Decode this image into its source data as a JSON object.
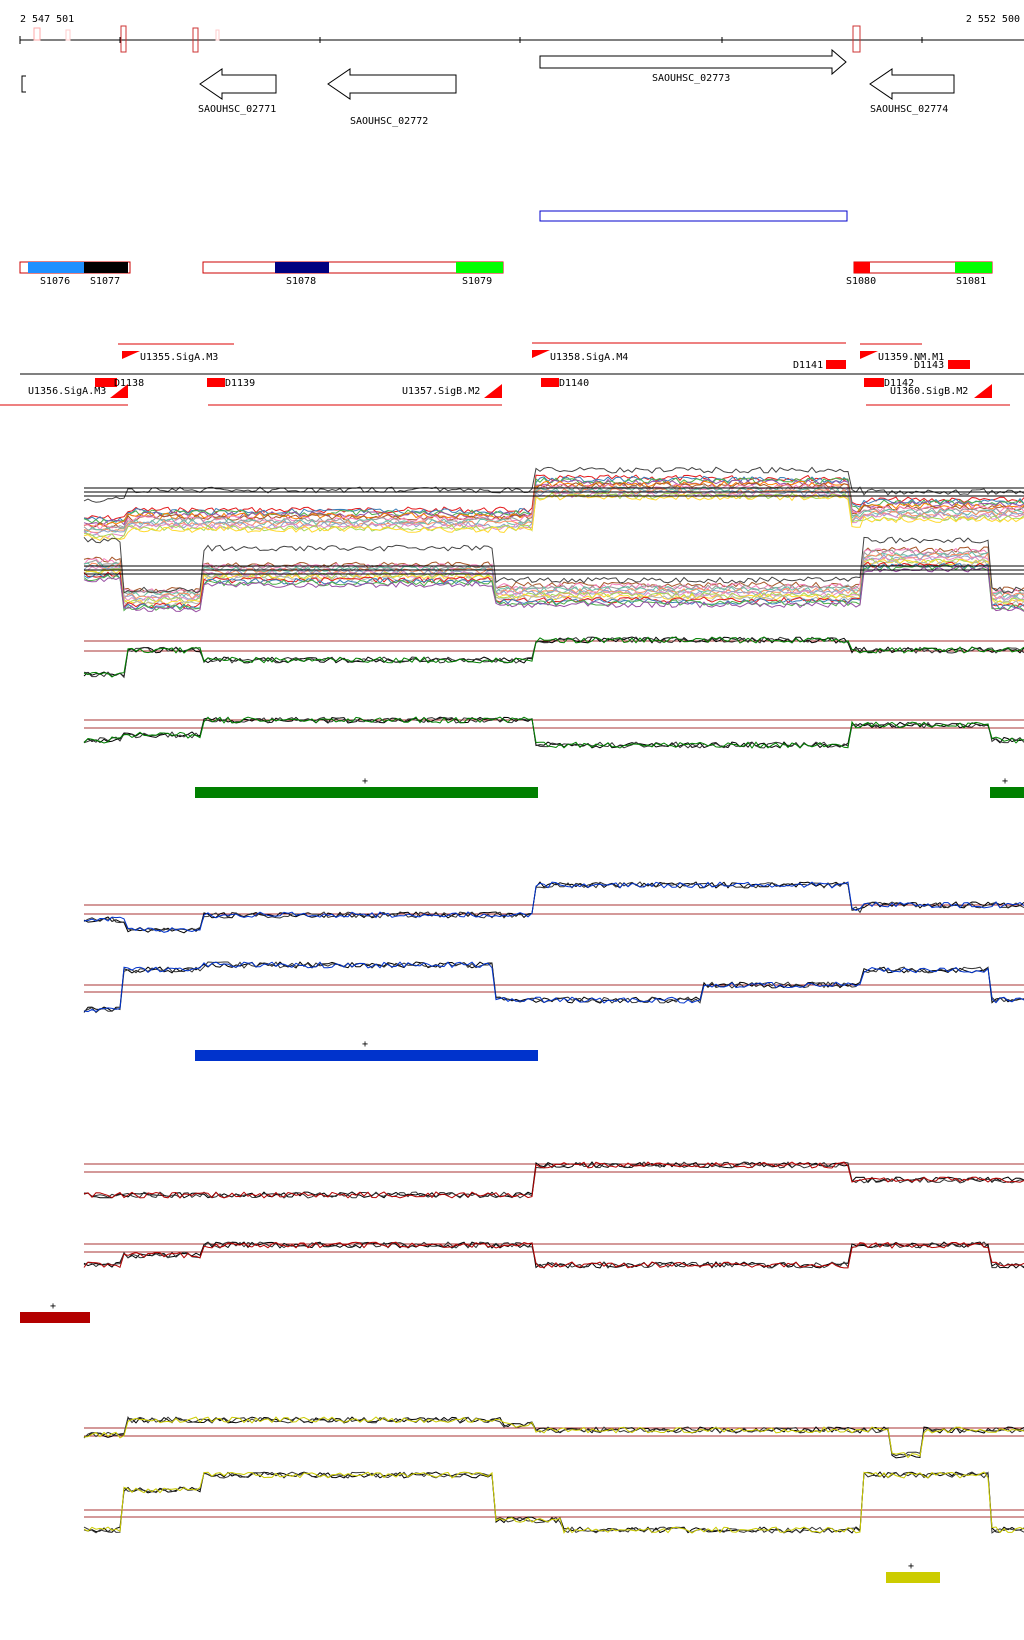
{
  "coords": {
    "start": "2 547 501",
    "end": "2 552 500"
  },
  "genes": [
    {
      "label": "SAOUHSC_02771"
    },
    {
      "label": "SAOUHSC_02772"
    },
    {
      "label": "SAOUHSC_02773"
    },
    {
      "label": "SAOUHSC_02774"
    }
  ],
  "segments": [
    {
      "label": "S1076",
      "color": "#1e90ff"
    },
    {
      "label": "S1077",
      "color": "#000000"
    },
    {
      "label": "S1078",
      "color": "#000080"
    },
    {
      "label": "S1079",
      "color": "#00ff00"
    },
    {
      "label": "S1080",
      "color": "#ff0000"
    },
    {
      "label": "S1081",
      "color": "#00ff00"
    }
  ],
  "promoters": [
    {
      "label": "U1355.SigA.M3"
    },
    {
      "label": "U1356.SigA.M3"
    },
    {
      "label": "U1357.SigB.M2"
    },
    {
      "label": "U1358.SigA.M4"
    },
    {
      "label": "U1359.NM.M1"
    },
    {
      "label": "U1360.SigB.M2"
    }
  ],
  "terminators": [
    {
      "label": "D1138"
    },
    {
      "label": "D1139"
    },
    {
      "label": "D1140"
    },
    {
      "label": "D1141"
    },
    {
      "label": "D1142"
    },
    {
      "label": "D1143"
    }
  ],
  "panels": [
    {
      "color": "#008000",
      "strand_label": "+"
    },
    {
      "color": "#0033cc",
      "strand_label": "+"
    },
    {
      "color": "#b30000",
      "strand_label": "+"
    },
    {
      "color": "#cccc00",
      "strand_label": "+"
    }
  ]
}
